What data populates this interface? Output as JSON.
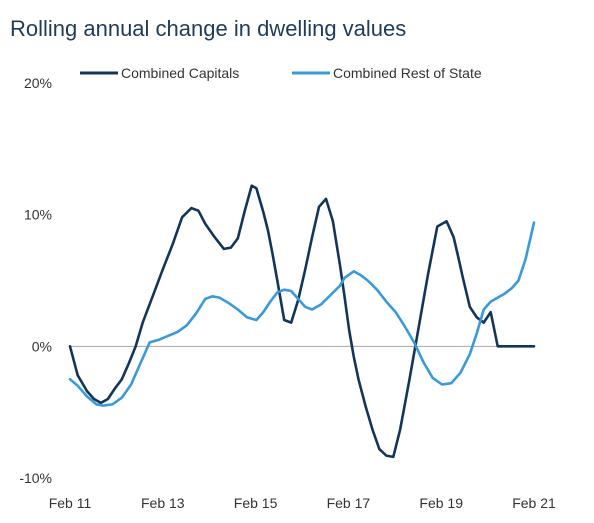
{
  "chart_data": {
    "type": "line",
    "title": "Rolling annual change in dwelling values",
    "xlabel": "",
    "ylabel": "",
    "ylim": [
      -10,
      20
    ],
    "xlim": [
      2011.0833,
      2021.0833
    ],
    "y_ticks": [
      {
        "value": 20,
        "label": "20%"
      },
      {
        "value": 10,
        "label": "10%"
      },
      {
        "value": 0,
        "label": "0%"
      },
      {
        "value": -10,
        "label": "-10%"
      }
    ],
    "x_ticks": [
      {
        "value": 2011.0833,
        "label": "Feb 11"
      },
      {
        "value": 2013.0833,
        "label": "Feb 13"
      },
      {
        "value": 2015.0833,
        "label": "Feb 15"
      },
      {
        "value": 2017.0833,
        "label": "Feb 17"
      },
      {
        "value": 2019.0833,
        "label": "Feb 19"
      },
      {
        "value": 2021.0833,
        "label": "Feb 21"
      }
    ],
    "legend_position": "top",
    "grid": false,
    "zero_line": true,
    "series": [
      {
        "name": "Combined Capitals",
        "color": "#14355a",
        "x": [
          2011.0833,
          2011.25,
          2011.45,
          2011.6,
          2011.75,
          2011.9,
          2012.05,
          2012.2,
          2012.35,
          2012.5,
          2012.65,
          2012.8,
          2012.95,
          2013.1,
          2013.3,
          2013.5,
          2013.7,
          2013.85,
          2014.0,
          2014.2,
          2014.4,
          2014.55,
          2014.7,
          2014.85,
          2015.0,
          2015.1,
          2015.25,
          2015.35,
          2015.45,
          2015.55,
          2015.7,
          2015.85,
          2016.0,
          2016.15,
          2016.3,
          2016.45,
          2016.6,
          2016.75,
          2016.9,
          2017.0,
          2017.1,
          2017.2,
          2017.3,
          2017.45,
          2017.6,
          2017.75,
          2017.9,
          2018.05,
          2018.2,
          2018.4,
          2018.6,
          2018.8,
          2019.0,
          2019.2,
          2019.35,
          2019.45,
          2019.55,
          2019.7,
          2019.85,
          2020.0,
          2020.15,
          2020.3,
          2020.45,
          2020.55,
          2020.65,
          2020.75,
          2020.85,
          2021.0,
          2021.0833
        ],
        "values": [
          0.0,
          -2.2,
          -3.4,
          -4.0,
          -4.3,
          -4.0,
          -3.2,
          -2.5,
          -1.3,
          0.0,
          1.8,
          3.2,
          4.6,
          6.0,
          7.8,
          9.8,
          10.5,
          10.3,
          9.3,
          8.3,
          7.4,
          7.5,
          8.2,
          10.3,
          12.2,
          12.0,
          10.2,
          8.8,
          7.0,
          5.0,
          2.0,
          1.8,
          3.5,
          5.8,
          8.3,
          10.6,
          11.2,
          9.5,
          6.2,
          3.8,
          1.2,
          -0.8,
          -2.5,
          -4.5,
          -6.3,
          -7.8,
          -8.3,
          -8.4,
          -6.3,
          -2.5,
          1.5,
          5.5,
          9.1,
          9.5,
          8.3,
          6.8,
          5.2,
          3.0,
          2.2,
          1.8,
          2.6,
          0,
          0,
          0,
          0,
          0,
          0,
          0,
          0
        ]
      },
      {
        "name": "Combined Rest of State",
        "color": "#3a9ad9",
        "x": [
          2011.0833,
          2011.25,
          2011.45,
          2011.65,
          2011.8,
          2012.0,
          2012.2,
          2012.4,
          2012.6,
          2012.8,
          2013.0,
          2013.2,
          2013.4,
          2013.6,
          2013.8,
          2014.0,
          2014.15,
          2014.3,
          2014.5,
          2014.7,
          2014.9,
          2015.1,
          2015.25,
          2015.4,
          2015.55,
          2015.7,
          2015.85,
          2016.0,
          2016.15,
          2016.3,
          2016.5,
          2016.7,
          2016.9,
          2017.0,
          2017.2,
          2017.35,
          2017.5,
          2017.7,
          2017.9,
          2018.1,
          2018.3,
          2018.5,
          2018.7,
          2018.9,
          2019.1,
          2019.3,
          2019.5,
          2019.7,
          2019.85,
          2020.0,
          2020.15,
          2020.3,
          2020.45,
          2020.6,
          2020.75,
          2020.9,
          2021.0833
        ],
        "values": [
          -2.5,
          -3.0,
          -3.8,
          -4.4,
          -4.5,
          -4.4,
          -3.9,
          -2.9,
          -1.3,
          0.3,
          0.5,
          0.8,
          1.1,
          1.6,
          2.5,
          3.6,
          3.8,
          3.7,
          3.3,
          2.8,
          2.2,
          2.0,
          2.6,
          3.4,
          4.1,
          4.3,
          4.2,
          3.6,
          3.0,
          2.8,
          3.2,
          3.9,
          4.6,
          5.2,
          5.7,
          5.4,
          5.0,
          4.3,
          3.4,
          2.6,
          1.5,
          0.3,
          -1.2,
          -2.4,
          -2.9,
          -2.8,
          -2.0,
          -0.6,
          1.0,
          2.8,
          3.4,
          3.7,
          4.0,
          4.4,
          5.0,
          6.6,
          9.4
        ]
      }
    ]
  }
}
